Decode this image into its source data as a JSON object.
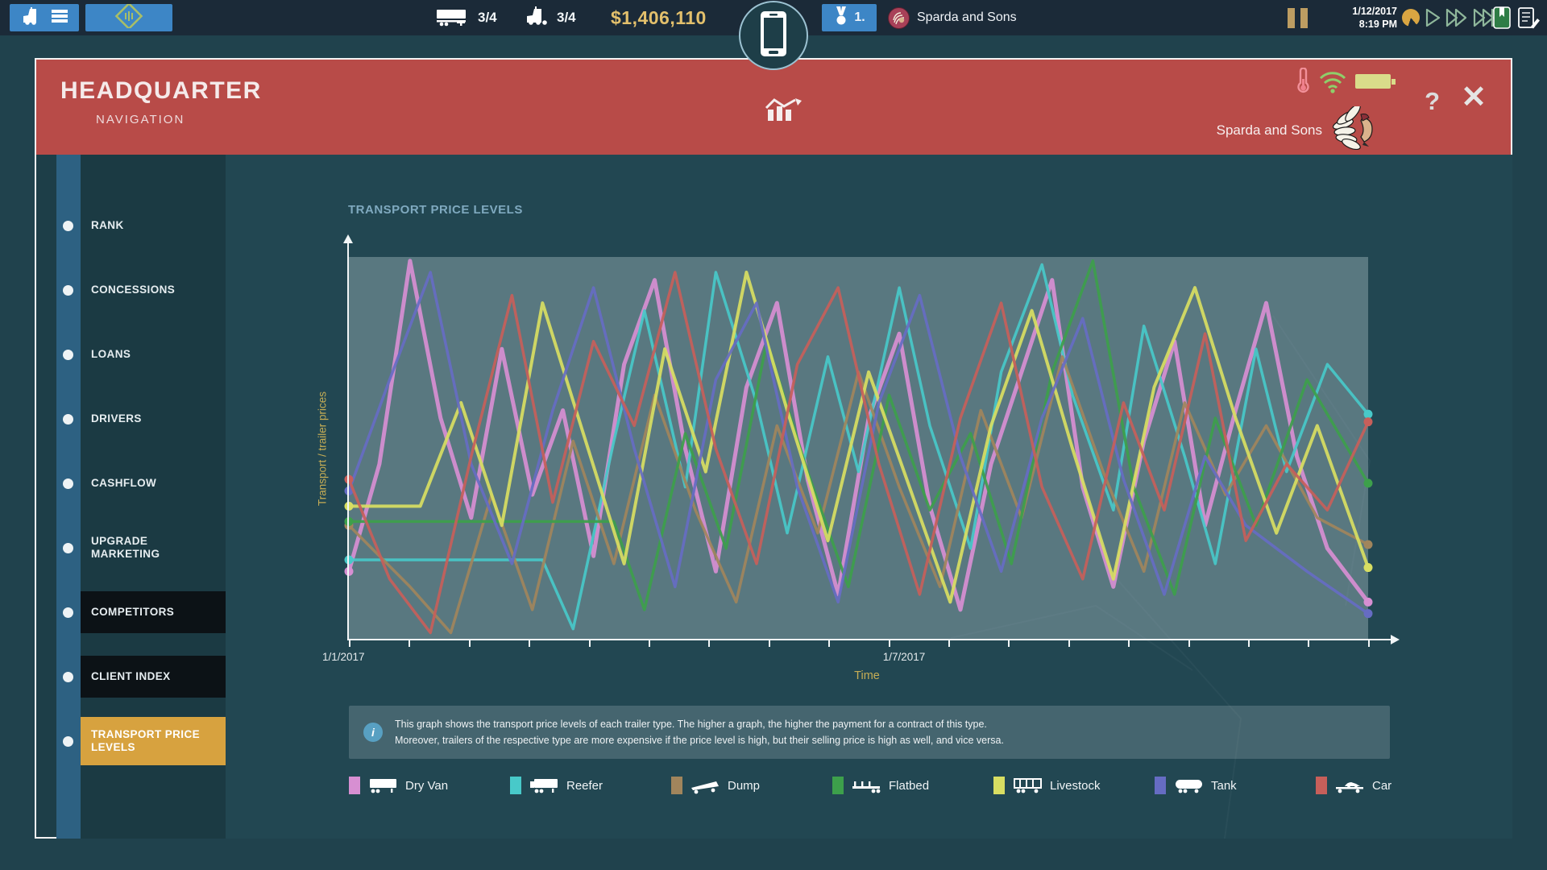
{
  "topbar": {
    "trailers_count": "3/4",
    "trucks_count": "3/4",
    "money": "$1,406,110",
    "rank": "1.",
    "company": "Sparda and Sons",
    "date": "1/12/2017",
    "time": "8:19 PM"
  },
  "header": {
    "title": "HEADQUARTER",
    "subtitle": "NAVIGATION",
    "company": "Sparda and Sons",
    "help_label": "?",
    "close_label": "✕"
  },
  "sidebar": {
    "items": [
      {
        "label": "RANK",
        "state": "normal"
      },
      {
        "label": "CONCESSIONS",
        "state": "normal"
      },
      {
        "label": "LOANS",
        "state": "normal"
      },
      {
        "label": "DRIVERS",
        "state": "normal"
      },
      {
        "label": "CASHFLOW",
        "state": "normal"
      },
      {
        "label": "UPGRADE MARKETING",
        "state": "normal"
      },
      {
        "label": "COMPETITORS",
        "state": "dark"
      },
      {
        "label": "CLIENT INDEX",
        "state": "dark"
      },
      {
        "label": "TRANSPORT PRICE LEVELS",
        "state": "active"
      }
    ]
  },
  "chart": {
    "title": "TRANSPORT PRICE LEVELS",
    "ylabel": "Transport / trailer prices",
    "xlabel": "Time",
    "x_tick_label_left": "1/1/2017",
    "x_tick_label_mid": "1/7/2017"
  },
  "info": {
    "line1": "This graph shows the transport price levels of each trailer type. The higher a graph, the higher the payment for a contract of this type.",
    "line2": "Moreover, trailers of the respective type are more expensive if the price level is high, but their selling price is high as well, and vice versa."
  },
  "legend": {
    "items": [
      {
        "label": "Dry Van",
        "color": "#d78fd2",
        "icon": "dry-van-trailer-icon"
      },
      {
        "label": "Reefer",
        "color": "#48c9c9",
        "icon": "reefer-trailer-icon"
      },
      {
        "label": "Dump",
        "color": "#a1855c",
        "icon": "dump-trailer-icon"
      },
      {
        "label": "Flatbed",
        "color": "#3da04b",
        "icon": "flatbed-trailer-icon"
      },
      {
        "label": "Livestock",
        "color": "#d8de62",
        "icon": "livestock-trailer-icon"
      },
      {
        "label": "Tank",
        "color": "#666cc3",
        "icon": "tank-trailer-icon"
      },
      {
        "label": "Car",
        "color": "#c75f5a",
        "icon": "car-trailer-icon"
      }
    ]
  },
  "chart_data": {
    "type": "line",
    "title": "TRANSPORT PRICE LEVELS",
    "xlabel": "Time",
    "ylabel": "Transport / trailer prices",
    "x_range_labels": [
      "1/1/2017",
      "1/7/2017"
    ],
    "x_axis_unit": "percent_of_range",
    "ylim": [
      0,
      100
    ],
    "grid": false,
    "legend_position": "bottom",
    "series": [
      {
        "name": "Dry Van",
        "color": "#d78fd2",
        "width": 5,
        "points": [
          [
            0,
            18
          ],
          [
            3,
            46
          ],
          [
            6,
            99
          ],
          [
            9,
            58
          ],
          [
            12,
            32
          ],
          [
            15,
            76
          ],
          [
            18,
            38
          ],
          [
            21,
            60
          ],
          [
            24,
            22
          ],
          [
            27,
            72
          ],
          [
            30,
            94
          ],
          [
            33,
            50
          ],
          [
            36,
            18
          ],
          [
            39,
            66
          ],
          [
            42,
            88
          ],
          [
            45,
            42
          ],
          [
            48,
            12
          ],
          [
            51,
            58
          ],
          [
            54,
            80
          ],
          [
            57,
            35
          ],
          [
            60,
            8
          ],
          [
            63,
            46
          ],
          [
            66,
            70
          ],
          [
            69,
            94
          ],
          [
            72,
            40
          ],
          [
            75,
            14
          ],
          [
            78,
            52
          ],
          [
            81,
            78
          ],
          [
            84,
            30
          ],
          [
            87,
            60
          ],
          [
            90,
            88
          ],
          [
            93,
            48
          ],
          [
            96,
            24
          ],
          [
            100,
            10
          ]
        ]
      },
      {
        "name": "Reefer",
        "color": "#48c9c9",
        "width": 3.5,
        "points": [
          [
            0,
            21
          ],
          [
            19,
            21
          ],
          [
            22,
            3
          ],
          [
            26,
            52
          ],
          [
            29,
            86
          ],
          [
            33,
            40
          ],
          [
            36,
            96
          ],
          [
            40,
            62
          ],
          [
            43,
            28
          ],
          [
            47,
            74
          ],
          [
            50,
            44
          ],
          [
            54,
            92
          ],
          [
            57,
            56
          ],
          [
            61,
            24
          ],
          [
            64,
            70
          ],
          [
            68,
            98
          ],
          [
            71,
            64
          ],
          [
            75,
            34
          ],
          [
            78,
            82
          ],
          [
            82,
            48
          ],
          [
            85,
            20
          ],
          [
            89,
            76
          ],
          [
            92,
            44
          ],
          [
            96,
            72
          ],
          [
            100,
            59
          ]
        ]
      },
      {
        "name": "Dump",
        "color": "#a1855c",
        "width": 3.5,
        "points": [
          [
            0,
            30
          ],
          [
            6,
            14
          ],
          [
            10,
            2
          ],
          [
            14,
            38
          ],
          [
            18,
            8
          ],
          [
            22,
            52
          ],
          [
            26,
            20
          ],
          [
            30,
            64
          ],
          [
            34,
            34
          ],
          [
            38,
            10
          ],
          [
            42,
            56
          ],
          [
            46,
            28
          ],
          [
            50,
            70
          ],
          [
            54,
            40
          ],
          [
            58,
            14
          ],
          [
            62,
            60
          ],
          [
            66,
            32
          ],
          [
            70,
            74
          ],
          [
            74,
            44
          ],
          [
            78,
            18
          ],
          [
            82,
            62
          ],
          [
            86,
            38
          ],
          [
            90,
            56
          ],
          [
            95,
            32
          ],
          [
            100,
            25
          ]
        ]
      },
      {
        "name": "Flatbed",
        "color": "#3da04b",
        "width": 3.5,
        "points": [
          [
            0,
            31
          ],
          [
            26,
            31
          ],
          [
            29,
            8
          ],
          [
            33,
            54
          ],
          [
            37,
            24
          ],
          [
            41,
            78
          ],
          [
            45,
            44
          ],
          [
            49,
            14
          ],
          [
            53,
            64
          ],
          [
            57,
            34
          ],
          [
            61,
            54
          ],
          [
            65,
            20
          ],
          [
            69,
            70
          ],
          [
            73,
            99
          ],
          [
            77,
            40
          ],
          [
            81,
            12
          ],
          [
            85,
            58
          ],
          [
            89,
            30
          ],
          [
            94,
            68
          ],
          [
            100,
            41
          ]
        ]
      },
      {
        "name": "Livestock",
        "color": "#d8de62",
        "width": 4,
        "points": [
          [
            0,
            35
          ],
          [
            7,
            35
          ],
          [
            11,
            62
          ],
          [
            15,
            30
          ],
          [
            19,
            88
          ],
          [
            23,
            54
          ],
          [
            27,
            20
          ],
          [
            31,
            76
          ],
          [
            35,
            44
          ],
          [
            39,
            96
          ],
          [
            43,
            60
          ],
          [
            47,
            26
          ],
          [
            51,
            70
          ],
          [
            55,
            40
          ],
          [
            59,
            10
          ],
          [
            63,
            56
          ],
          [
            67,
            86
          ],
          [
            71,
            50
          ],
          [
            75,
            16
          ],
          [
            79,
            66
          ],
          [
            83,
            92
          ],
          [
            87,
            58
          ],
          [
            91,
            28
          ],
          [
            95,
            56
          ],
          [
            100,
            19
          ]
        ]
      },
      {
        "name": "Tank",
        "color": "#666cc3",
        "width": 3.5,
        "points": [
          [
            0,
            39
          ],
          [
            4,
            68
          ],
          [
            8,
            96
          ],
          [
            12,
            46
          ],
          [
            16,
            20
          ],
          [
            20,
            60
          ],
          [
            24,
            92
          ],
          [
            28,
            50
          ],
          [
            32,
            14
          ],
          [
            36,
            68
          ],
          [
            40,
            88
          ],
          [
            44,
            40
          ],
          [
            48,
            10
          ],
          [
            52,
            62
          ],
          [
            56,
            90
          ],
          [
            60,
            48
          ],
          [
            64,
            18
          ],
          [
            68,
            58
          ],
          [
            72,
            84
          ],
          [
            76,
            42
          ],
          [
            80,
            12
          ],
          [
            84,
            48
          ],
          [
            88,
            30
          ],
          [
            94,
            18
          ],
          [
            100,
            7
          ]
        ]
      },
      {
        "name": "Car",
        "color": "#c75f5a",
        "width": 3.5,
        "points": [
          [
            0,
            42
          ],
          [
            4,
            16
          ],
          [
            8,
            2
          ],
          [
            12,
            48
          ],
          [
            16,
            90
          ],
          [
            20,
            36
          ],
          [
            24,
            78
          ],
          [
            28,
            56
          ],
          [
            32,
            96
          ],
          [
            36,
            50
          ],
          [
            40,
            20
          ],
          [
            44,
            72
          ],
          [
            48,
            92
          ],
          [
            52,
            46
          ],
          [
            56,
            12
          ],
          [
            60,
            58
          ],
          [
            64,
            88
          ],
          [
            68,
            40
          ],
          [
            72,
            16
          ],
          [
            76,
            62
          ],
          [
            80,
            34
          ],
          [
            84,
            80
          ],
          [
            88,
            26
          ],
          [
            92,
            46
          ],
          [
            96,
            34
          ],
          [
            100,
            57
          ]
        ]
      }
    ]
  }
}
